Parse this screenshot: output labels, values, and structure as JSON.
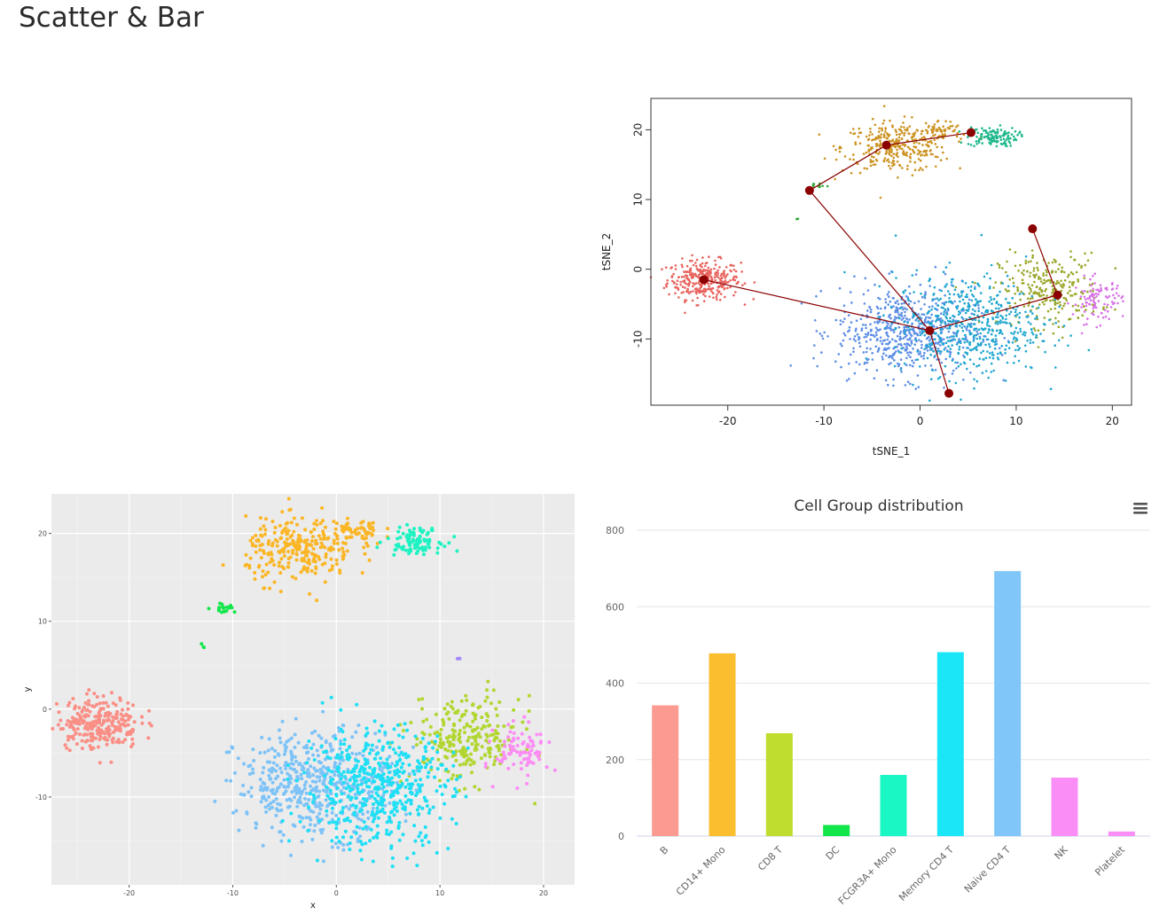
{
  "page": {
    "title": "Scatter & Bar"
  },
  "icons": {
    "chart_menu": "hamburger-menu-icon"
  },
  "colors": {
    "B": "#F8766D",
    "CD14+ Mono": "#D89000",
    "CD8 T": "#A3A500",
    "DC": "#39B600",
    "FCGR3A+ Mono": "#00BF7D",
    "Memory CD4 T": "#00BFC4",
    "Naive CD4 T": "#00B0F6",
    "NK": "#9590FF",
    "Platelet": "#E76BF3",
    "tsne_pal": [
      "#E8635D",
      "#CC9322",
      "#9AA628",
      "#2FA836",
      "#1FB88C",
      "#20A6CF",
      "#5D8EE6",
      "#8B7FF0",
      "#D873E6"
    ],
    "gg_pal": [
      "#FA8F86",
      "#FBB626",
      "#B2D631",
      "#12E64B",
      "#1FF2C2",
      "#1FDFF5",
      "#7DC3F7",
      "#A68BFB",
      "#FB8DF5"
    ],
    "bar_pal": [
      "#FB9A90",
      "#FBBE2E",
      "#BEDD2E",
      "#11E64A",
      "#1BF7C4",
      "#1BE6F7",
      "#80C6F8",
      "#FB8EF6",
      "#FB8EF6"
    ],
    "trajectory": "#8B0000"
  },
  "chart_data": [
    {
      "id": "tsne",
      "type": "scatter",
      "title": "",
      "xlabel": "tSNE_1",
      "ylabel": "tSNE_2",
      "xlim": [
        -28,
        22
      ],
      "ylim": [
        -19.5,
        24.5
      ],
      "xticks": [
        -20,
        -10,
        0,
        10,
        20
      ],
      "yticks": [
        -10,
        0,
        10,
        20
      ],
      "grid": false,
      "clusters": [
        {
          "cx": -22.5,
          "cy": -1.5,
          "sx": 1.9,
          "sy": 1.4,
          "n": 320,
          "color": 0
        },
        {
          "cx": -2.5,
          "cy": 17.5,
          "sx": 2.8,
          "sy": 1.8,
          "n": 320,
          "color": 1
        },
        {
          "cx": 2.0,
          "cy": 19.8,
          "sx": 1.2,
          "sy": 0.8,
          "n": 60,
          "color": 1
        },
        {
          "cx": 7.5,
          "cy": 19.0,
          "sx": 1.3,
          "sy": 0.7,
          "n": 120,
          "color": 4
        },
        {
          "cx": 13.5,
          "cy": -3.0,
          "sx": 2.6,
          "sy": 2.6,
          "n": 280,
          "color": 2
        },
        {
          "cx": 18.5,
          "cy": -4.5,
          "sx": 1.3,
          "sy": 1.6,
          "n": 100,
          "color": 8
        },
        {
          "cx": -1.5,
          "cy": -9.0,
          "sx": 3.6,
          "sy": 3.2,
          "n": 600,
          "color": 6
        },
        {
          "cx": 5.0,
          "cy": -8.0,
          "sx": 3.8,
          "sy": 3.6,
          "n": 560,
          "color": 5
        },
        {
          "cx": -10.5,
          "cy": 12.0,
          "sx": 0.4,
          "sy": 0.2,
          "n": 12,
          "color": 3
        },
        {
          "cx": -12.8,
          "cy": 7.2,
          "sx": 0.1,
          "sy": 0.1,
          "n": 3,
          "color": 3
        }
      ],
      "trajectory": {
        "nodes": [
          [
            -22.5,
            -1.5
          ],
          [
            1.0,
            -8.8
          ],
          [
            3.0,
            -17.8
          ],
          [
            14.3,
            -3.7
          ],
          [
            11.7,
            5.8
          ],
          [
            -11.5,
            11.3
          ],
          [
            -3.5,
            17.8
          ],
          [
            5.3,
            19.6
          ]
        ],
        "edges": [
          [
            0,
            1
          ],
          [
            1,
            2
          ],
          [
            1,
            3
          ],
          [
            3,
            4
          ],
          [
            1,
            5
          ],
          [
            5,
            6
          ],
          [
            6,
            7
          ]
        ]
      }
    },
    {
      "id": "ggplot",
      "type": "scatter",
      "title": "",
      "xlabel": "x",
      "ylabel": "y",
      "xlim": [
        -27.5,
        23
      ],
      "ylim": [
        -20,
        24.5
      ],
      "xticks": [
        -20,
        -10,
        0,
        10,
        20
      ],
      "yticks": [
        -10,
        0,
        10,
        20
      ],
      "grid": true,
      "clusters": [
        {
          "cx": -23.0,
          "cy": -1.5,
          "sx": 2.0,
          "sy": 1.5,
          "n": 260,
          "color": 0
        },
        {
          "cx": -3.5,
          "cy": 18.0,
          "sx": 2.6,
          "sy": 1.8,
          "n": 260,
          "color": 1
        },
        {
          "cx": 2.0,
          "cy": 20.2,
          "sx": 1.3,
          "sy": 0.9,
          "n": 60,
          "color": 1
        },
        {
          "cx": 7.5,
          "cy": 19.2,
          "sx": 1.3,
          "sy": 0.7,
          "n": 100,
          "color": 4
        },
        {
          "cx": 12.5,
          "cy": -3.5,
          "sx": 2.6,
          "sy": 2.4,
          "n": 250,
          "color": 2
        },
        {
          "cx": 18.0,
          "cy": -4.8,
          "sx": 1.3,
          "sy": 1.5,
          "n": 90,
          "color": 8
        },
        {
          "cx": -2.0,
          "cy": -8.5,
          "sx": 3.8,
          "sy": 3.0,
          "n": 500,
          "color": 6
        },
        {
          "cx": 4.0,
          "cy": -9.0,
          "sx": 3.6,
          "sy": 3.4,
          "n": 480,
          "color": 5
        },
        {
          "cx": -11.0,
          "cy": 11.6,
          "sx": 0.6,
          "sy": 0.3,
          "n": 18,
          "color": 3
        },
        {
          "cx": -12.8,
          "cy": 7.2,
          "sx": 0.1,
          "sy": 0.1,
          "n": 3,
          "color": 3
        },
        {
          "cx": 11.8,
          "cy": 5.8,
          "sx": 0.1,
          "sy": 0.1,
          "n": 3,
          "color": 7
        }
      ]
    },
    {
      "id": "bar",
      "type": "bar",
      "title": "Cell Group distribution",
      "xlabel": "",
      "ylabel": "",
      "categories": [
        "B",
        "CD14+ Mono",
        "CD8 T",
        "DC",
        "FCGR3A+ Mono",
        "Memory CD4 T",
        "Naive CD4 T",
        "NK",
        "Platelet"
      ],
      "values": [
        342,
        478,
        269,
        29,
        160,
        481,
        693,
        153,
        12
      ],
      "ylim": [
        0,
        800
      ],
      "yticks": [
        0,
        200,
        400,
        600,
        800
      ],
      "grid": true,
      "legend": "none"
    }
  ]
}
